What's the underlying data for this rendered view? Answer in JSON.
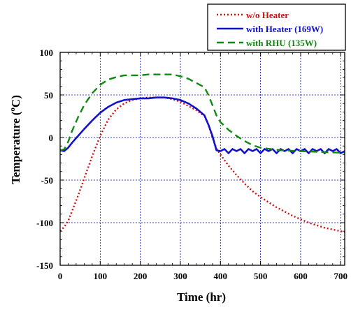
{
  "chart_data": {
    "type": "line",
    "title": "",
    "xlabel": "Time (hr)",
    "ylabel_parts": [
      "Temperature (",
      "o",
      "C)"
    ],
    "xlim": [
      0,
      710
    ],
    "ylim": [
      -150,
      100
    ],
    "xticks": [
      0,
      100,
      200,
      300,
      400,
      500,
      600,
      700
    ],
    "yticks": [
      -150,
      -100,
      -50,
      0,
      50,
      100
    ],
    "grid": true,
    "legend_position": "top-right",
    "series": [
      {
        "name": "w/o Heater",
        "color": "#cc1111",
        "style": "dotted",
        "x": [
          0,
          10,
          20,
          30,
          45,
          60,
          80,
          100,
          120,
          140,
          160,
          180,
          200,
          220,
          240,
          260,
          280,
          300,
          320,
          340,
          360,
          370,
          380,
          390,
          400,
          420,
          440,
          460,
          480,
          500,
          540,
          580,
          620,
          660,
          700,
          710
        ],
        "y": [
          -110,
          -105,
          -98,
          -86,
          -68,
          -48,
          -22,
          2,
          21,
          33,
          40,
          44,
          46,
          47,
          47,
          47,
          45,
          42,
          37,
          32,
          25,
          15,
          0,
          -13,
          -20,
          -33,
          -44,
          -54,
          -63,
          -70,
          -82,
          -92,
          -100,
          -106,
          -110,
          -111
        ]
      },
      {
        "name": "with Heater (169W)",
        "color": "#1111cc",
        "style": "solid",
        "x": [
          0,
          10,
          20,
          30,
          45,
          60,
          80,
          100,
          120,
          140,
          160,
          180,
          200,
          220,
          240,
          260,
          280,
          300,
          320,
          340,
          360,
          370,
          380,
          390,
          400,
          440,
          480,
          520,
          560,
          600,
          640,
          680,
          710
        ],
        "y": [
          -15,
          -16,
          -12,
          -6,
          2,
          10,
          20,
          29,
          36,
          41,
          44,
          45,
          46,
          46,
          47,
          47,
          46,
          44,
          40,
          34,
          26,
          15,
          2,
          -15,
          -16,
          -16,
          -16,
          -16,
          -16,
          -16,
          -16,
          -16,
          -16
        ]
      },
      {
        "name": "with RHU (135W)",
        "color": "#118811",
        "style": "dashed",
        "x": [
          0,
          10,
          20,
          30,
          45,
          60,
          80,
          100,
          120,
          140,
          160,
          180,
          200,
          220,
          240,
          260,
          280,
          300,
          320,
          340,
          360,
          370,
          380,
          390,
          400,
          420,
          440,
          460,
          480,
          500,
          550,
          600,
          650,
          710
        ],
        "y": [
          -15,
          -14,
          -5,
          8,
          24,
          38,
          52,
          62,
          68,
          71,
          73,
          73,
          73,
          74,
          74,
          74,
          74,
          72,
          69,
          64,
          59,
          50,
          38,
          26,
          18,
          9,
          2,
          -4,
          -9,
          -12,
          -15,
          -16,
          -17,
          -18
        ]
      }
    ]
  }
}
